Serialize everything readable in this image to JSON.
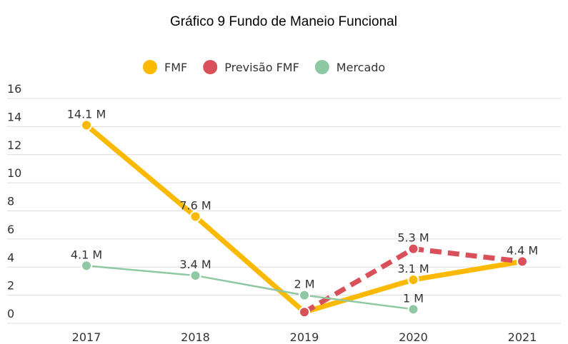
{
  "chart_data": {
    "type": "line",
    "title": "Gráfico 9 Fundo de Maneio Funcional",
    "categories": [
      "2017",
      "2018",
      "2019",
      "2020",
      "2021"
    ],
    "series": [
      {
        "name": "FMF",
        "color": "#fbb900",
        "values": [
          14.1,
          7.6,
          0.8,
          3.1,
          4.4
        ],
        "value_labels": [
          "14.1 M",
          "7.6 M",
          null,
          "3.1 M",
          "4.4 M"
        ]
      },
      {
        "name": "Previsão FMF",
        "color": "#d9505a",
        "values": [
          null,
          null,
          0.8,
          5.3,
          4.4
        ],
        "value_labels": [
          null,
          null,
          null,
          "5.3 M",
          null
        ],
        "dashed": true
      },
      {
        "name": "Mercado",
        "color": "#8fc9a3",
        "values": [
          4.1,
          3.4,
          2,
          1,
          null
        ],
        "value_labels": [
          "4.1 M",
          "3.4 M",
          "2 M",
          "1 M",
          null
        ]
      }
    ],
    "ylim": [
      0,
      16
    ],
    "yticks": [
      0,
      2,
      4,
      6,
      8,
      10,
      12,
      14,
      16
    ],
    "grid": true,
    "legend": "top"
  }
}
